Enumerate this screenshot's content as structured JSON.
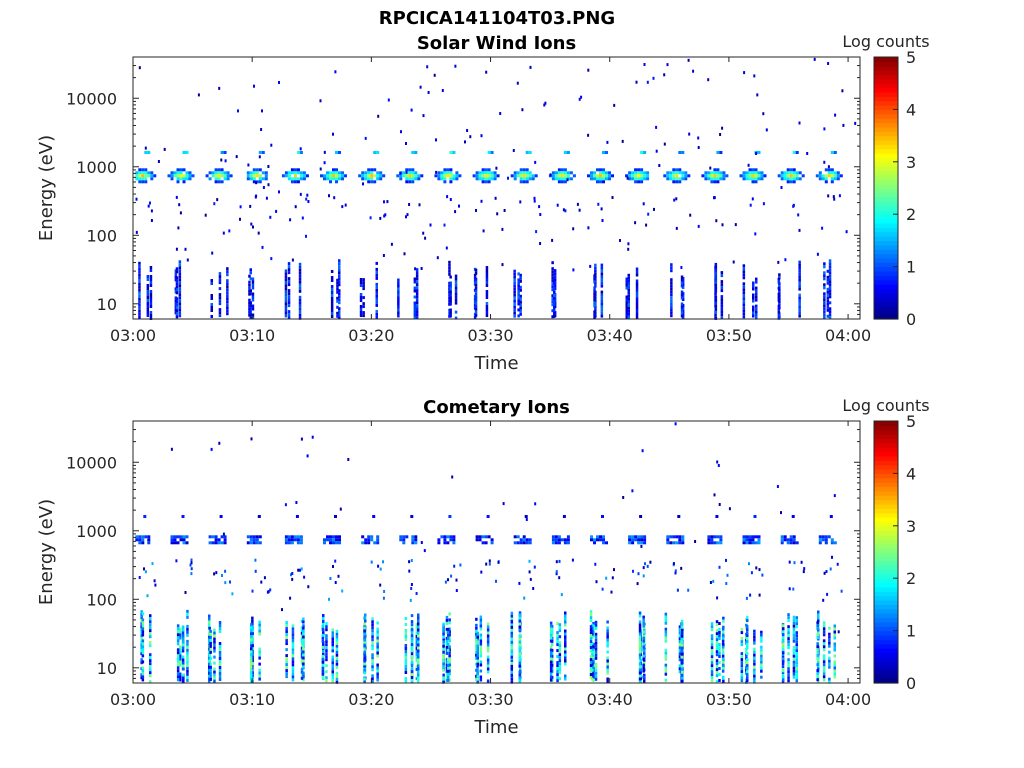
{
  "figure_title": "RPCICA141104T03.PNG",
  "chart_data": [
    {
      "type": "heatmap",
      "title": "Solar Wind Ions",
      "xlabel": "Time",
      "ylabel": "Energy (eV)",
      "x_ticks": [
        "03:00",
        "03:10",
        "03:20",
        "03:30",
        "03:40",
        "03:50",
        "04:00"
      ],
      "xlim": [
        "03:00",
        "04:01"
      ],
      "y_scale": "log",
      "y_ticks": [
        10,
        100,
        1000,
        10000
      ],
      "ylim": [
        6,
        40000
      ],
      "colorbar": {
        "label": "Log counts",
        "range": [
          0,
          5
        ],
        "ticks": [
          0,
          1,
          2,
          3,
          4,
          5
        ],
        "colormap": "jet"
      },
      "features": {
        "solar_wind_energy_eV": 750,
        "sweep_period_min": 3.2,
        "low_energy_band_eV": [
          7,
          45
        ]
      }
    },
    {
      "type": "heatmap",
      "title": "Cometary Ions",
      "xlabel": "Time",
      "ylabel": "Energy (eV)",
      "x_ticks": [
        "03:00",
        "03:10",
        "03:20",
        "03:30",
        "03:40",
        "03:50",
        "04:00"
      ],
      "xlim": [
        "03:00",
        "04:01"
      ],
      "y_scale": "log",
      "y_ticks": [
        10,
        100,
        1000,
        10000
      ],
      "ylim": [
        6,
        40000
      ],
      "colorbar": {
        "label": "Log counts",
        "range": [
          0,
          5
        ],
        "ticks": [
          0,
          1,
          2,
          3,
          4,
          5
        ],
        "colormap": "jet"
      },
      "features": {
        "solar_wind_energy_eV": 750,
        "sweep_period_min": 3.2,
        "low_energy_band_eV": [
          7,
          70
        ]
      }
    }
  ]
}
